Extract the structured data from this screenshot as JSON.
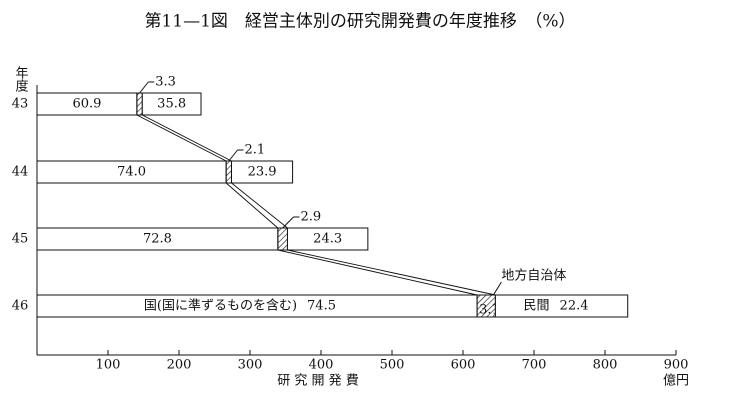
{
  "chart_data": {
    "type": "bar",
    "title": "第11—1図　経営主体別の研究開発費の年度推移　（%）",
    "y_axis_label": "年度",
    "x_axis_label": "研 究 開 発 費",
    "x_unit": "億円",
    "categories": [
      "43",
      "44",
      "45",
      "46"
    ],
    "totals": [
      231,
      360,
      466,
      832
    ],
    "series": [
      {
        "name": "国(国に準ずるものを含む)",
        "color": "#ffffff",
        "values": [
          60.9,
          74.0,
          72.8,
          74.5
        ],
        "value_labels": [
          "60.9",
          "74.0",
          "72.8",
          "74.5"
        ]
      },
      {
        "name": "地方自治体",
        "color": "#ffffff",
        "hatch": true,
        "values": [
          3.3,
          2.1,
          2.9,
          3.1
        ]
      },
      {
        "name": "民間",
        "color": "#ffffff",
        "values": [
          35.8,
          23.9,
          24.3,
          22.4
        ]
      }
    ],
    "xlim": [
      0,
      900
    ],
    "xticks": [
      100,
      200,
      300,
      400,
      500,
      600,
      700,
      800,
      900
    ]
  }
}
